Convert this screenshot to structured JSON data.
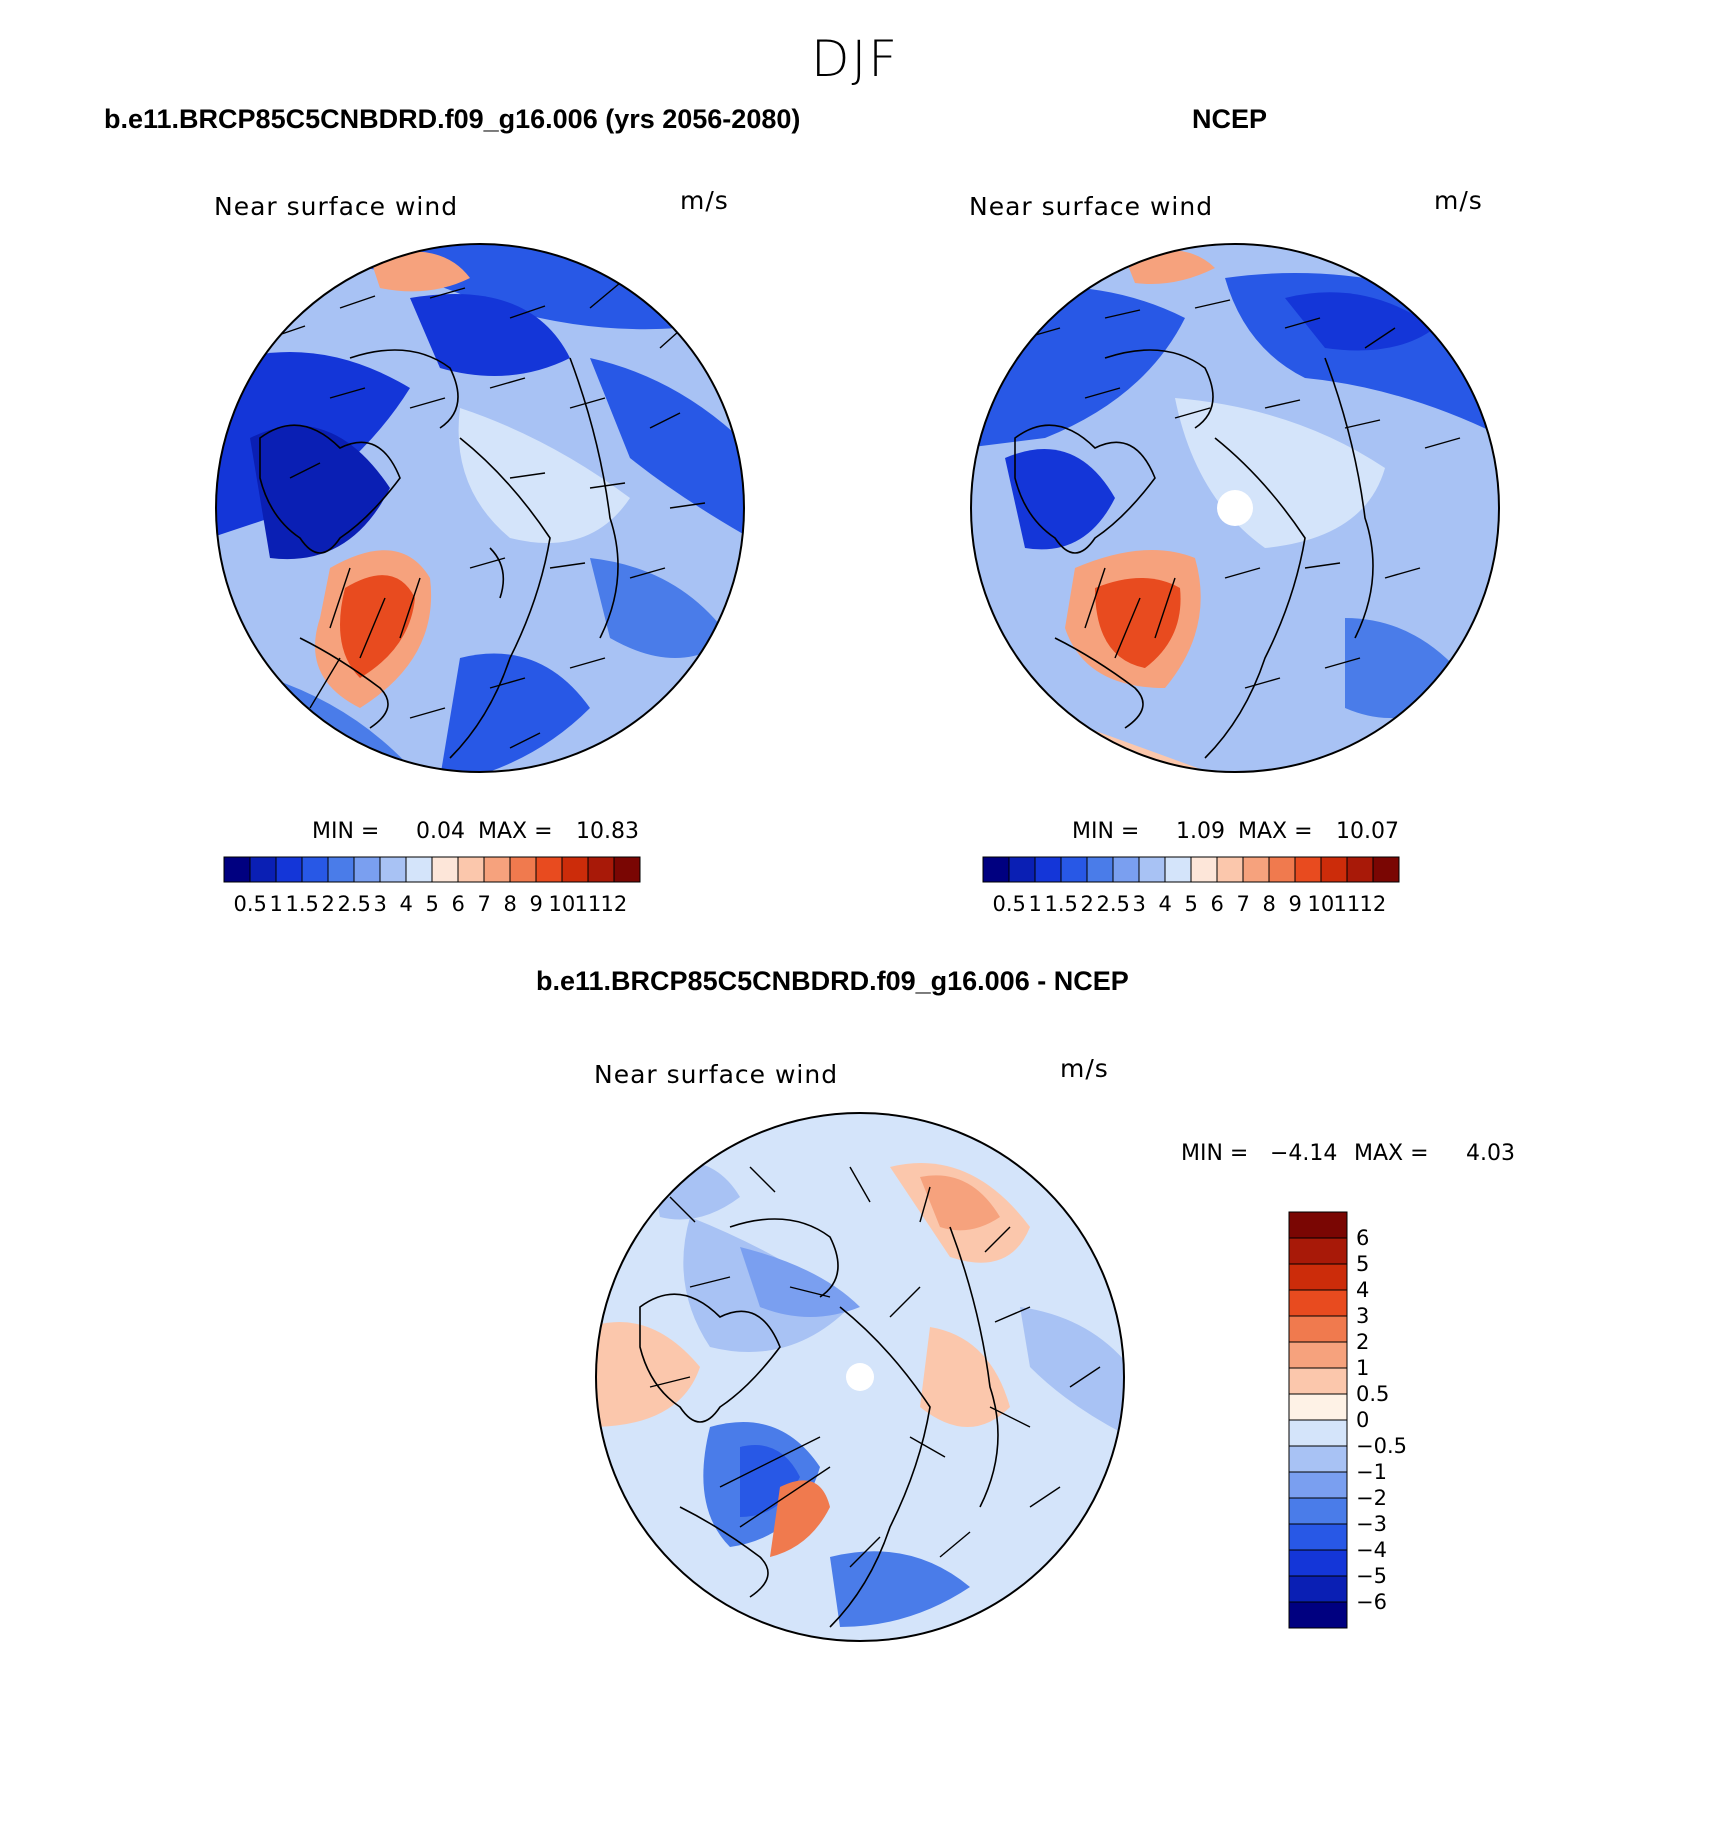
{
  "season": "DJF",
  "colors": {
    "abs_scale": [
      "#000080",
      "#0a1fb4",
      "#1436d8",
      "#2858e6",
      "#4a7ce9",
      "#7a9ff0",
      "#a8c2f4",
      "#d4e4fa",
      "#fde6d9",
      "#fbc7ac",
      "#f6a27d",
      "#f07a4e",
      "#e84b1f",
      "#cc2c0a",
      "#a81908",
      "#7a0603"
    ],
    "diff_scale": [
      "#000080",
      "#0a1fb4",
      "#1436d8",
      "#2858e6",
      "#4a7ce9",
      "#7a9ff0",
      "#a8c2f4",
      "#d4e4fa",
      "#fef2e6",
      "#fbc7ac",
      "#f6a27d",
      "#f07a4e",
      "#e84b1f",
      "#cc2c0a",
      "#a81908",
      "#7a0603"
    ]
  },
  "chart_data": [
    {
      "type": "heatmap",
      "projection": "north-polar-stereographic",
      "panel_title": "b.e11.BRCP85C5CNBDRD.f09_g16.006 (yrs 2056-2080)",
      "variable": "Near surface wind",
      "units": "m/s",
      "min_label": "MIN =",
      "min_value": "0.04",
      "max_label": "MAX =",
      "max_value": "10.83",
      "colorbar_levels": [
        "0.5",
        "1",
        "1.5",
        "2",
        "2.5",
        "3",
        "4",
        "5",
        "6",
        "7",
        "8",
        "9",
        "10",
        "11",
        "12"
      ]
    },
    {
      "type": "heatmap",
      "projection": "north-polar-stereographic",
      "panel_title": "NCEP",
      "variable": "Near surface wind",
      "units": "m/s",
      "min_label": "MIN =",
      "min_value": "1.09",
      "max_label": "MAX =",
      "max_value": "10.07",
      "colorbar_levels": [
        "0.5",
        "1",
        "1.5",
        "2",
        "2.5",
        "3",
        "4",
        "5",
        "6",
        "7",
        "8",
        "9",
        "10",
        "11",
        "12"
      ]
    },
    {
      "type": "heatmap",
      "projection": "north-polar-stereographic",
      "panel_title": "b.e11.BRCP85C5CNBDRD.f09_g16.006 - NCEP",
      "variable": "Near surface wind",
      "units": "m/s",
      "min_label": "MIN =",
      "min_value": "−4.14",
      "max_label": "MAX =",
      "max_value": "4.03",
      "colorbar_levels": [
        "6",
        "5",
        "4",
        "3",
        "2",
        "1",
        "0.5",
        "0",
        "−0.5",
        "−1",
        "−2",
        "−3",
        "−4",
        "−5",
        "−6"
      ]
    }
  ]
}
